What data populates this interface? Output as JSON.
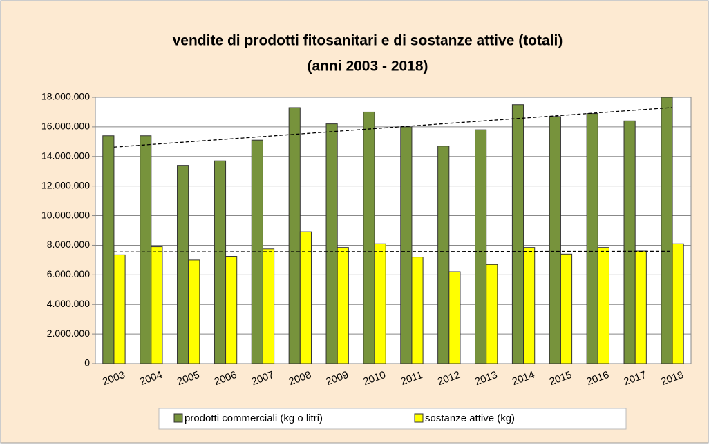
{
  "chart_data": {
    "type": "bar",
    "title": "vendite di prodotti fitosanitari e di sostanze attive (totali)",
    "subtitle": "(anni 2003 - 2018)",
    "categories": [
      "2003",
      "2004",
      "2005",
      "2006",
      "2007",
      "2008",
      "2009",
      "2010",
      "2011",
      "2012",
      "2013",
      "2014",
      "2015",
      "2016",
      "2017",
      "2018"
    ],
    "series": [
      {
        "name": "prodotti commerciali (kg o litri)",
        "color": "#77933c",
        "values": [
          15400000,
          15400000,
          13400000,
          13700000,
          15100000,
          17300000,
          16200000,
          17000000,
          16000000,
          14700000,
          15800000,
          17500000,
          16700000,
          16900000,
          16400000,
          18000000
        ]
      },
      {
        "name": "sostanze attive (kg)",
        "color": "#ffff00",
        "values": [
          7350000,
          7900000,
          7000000,
          7250000,
          7750000,
          8900000,
          7850000,
          8100000,
          7200000,
          6200000,
          6700000,
          7850000,
          7400000,
          7850000,
          7600000,
          8100000
        ]
      }
    ],
    "ylim": [
      0,
      18000000
    ],
    "yticks": [
      0,
      {
        "value": 2000000,
        "label": "2.000.000"
      },
      {
        "value": 4000000,
        "label": "4.000.000"
      },
      {
        "value": 6000000,
        "label": "6.000.000"
      },
      {
        "value": 8000000,
        "label": "8.000.000"
      },
      {
        "value": 10000000,
        "label": "10.000.000"
      },
      {
        "value": 12000000,
        "label": "12.000.000"
      },
      {
        "value": 14000000,
        "label": "14.000.000"
      },
      {
        "value": 16000000,
        "label": "16.000.000"
      },
      {
        "value": 18000000,
        "label": "18.000.000"
      }
    ],
    "grid": true,
    "trendline": true,
    "legend": "bottom"
  }
}
